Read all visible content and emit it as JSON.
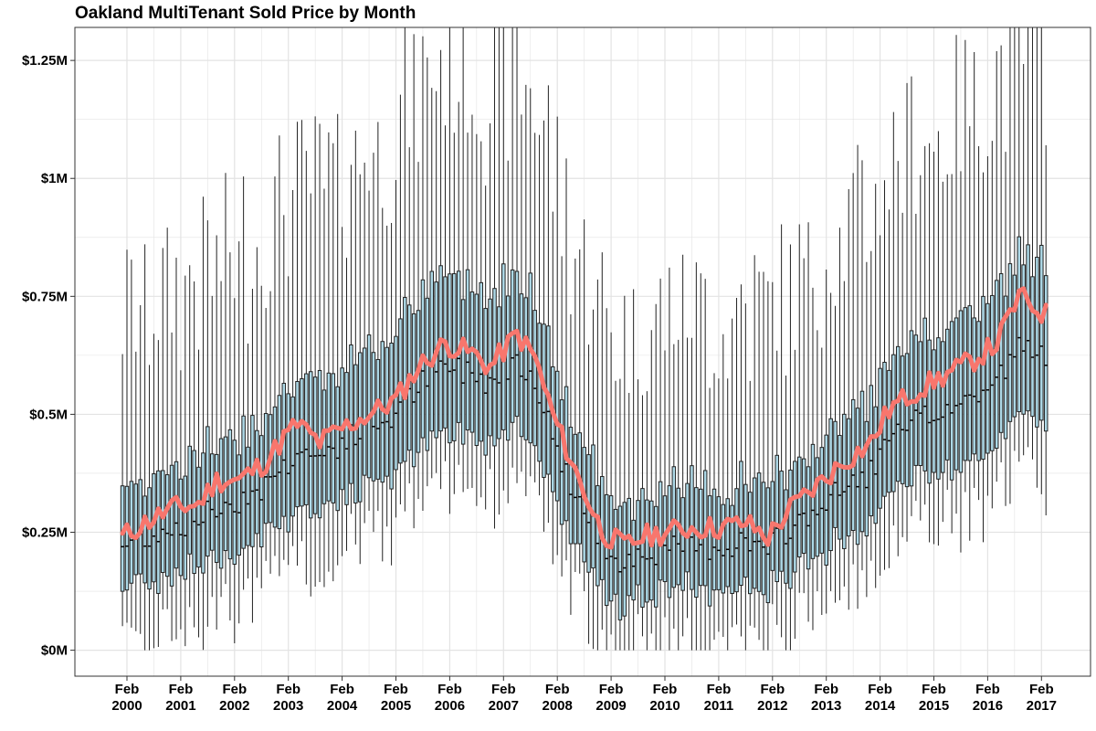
{
  "chart_data": {
    "type": "boxplot",
    "title": "Oakland MultiTenant Sold Price by Month",
    "xlabel": "",
    "ylabel": "",
    "ylim": [
      -0.055,
      1.32
    ],
    "yticks": [
      {
        "value": 0,
        "label": "$0M"
      },
      {
        "value": 0.25,
        "label": "$0.25M"
      },
      {
        "value": 0.5,
        "label": "$0.5M"
      },
      {
        "value": 0.75,
        "label": "$0.75M"
      },
      {
        "value": 1.0,
        "label": "$1M"
      },
      {
        "value": 1.25,
        "label": "$1.25M"
      }
    ],
    "xticks": [
      {
        "value": "2000-02",
        "label_top": "Feb",
        "label_bottom": "2000"
      },
      {
        "value": "2001-02",
        "label_top": "Feb",
        "label_bottom": "2001"
      },
      {
        "value": "2002-02",
        "label_top": "Feb",
        "label_bottom": "2002"
      },
      {
        "value": "2003-02",
        "label_top": "Feb",
        "label_bottom": "2003"
      },
      {
        "value": "2004-02",
        "label_top": "Feb",
        "label_bottom": "2004"
      },
      {
        "value": "2005-02",
        "label_top": "Feb",
        "label_bottom": "2005"
      },
      {
        "value": "2006-02",
        "label_top": "Feb",
        "label_bottom": "2006"
      },
      {
        "value": "2007-02",
        "label_top": "Feb",
        "label_bottom": "2007"
      },
      {
        "value": "2008-02",
        "label_top": "Feb",
        "label_bottom": "2008"
      },
      {
        "value": "2009-02",
        "label_top": "Feb",
        "label_bottom": "2009"
      },
      {
        "value": "2010-02",
        "label_top": "Feb",
        "label_bottom": "2010"
      },
      {
        "value": "2011-02",
        "label_top": "Feb",
        "label_bottom": "2011"
      },
      {
        "value": "2012-02",
        "label_top": "Feb",
        "label_bottom": "2012"
      },
      {
        "value": "2013-02",
        "label_top": "Feb",
        "label_bottom": "2013"
      },
      {
        "value": "2014-02",
        "label_top": "Feb",
        "label_bottom": "2014"
      },
      {
        "value": "2015-02",
        "label_top": "Feb",
        "label_bottom": "2015"
      },
      {
        "value": "2016-02",
        "label_top": "Feb",
        "label_bottom": "2016"
      },
      {
        "value": "2017-02",
        "label_top": "Feb",
        "label_bottom": "2017"
      }
    ],
    "grid": true,
    "legend": "none",
    "colors": {
      "box_fill": "#add8e6",
      "box_stroke": "#222222",
      "mean_line": "#f8766d",
      "grid": "#e3e3e3",
      "panel_border": "#333333"
    },
    "series": [
      {
        "label": "Mean",
        "style": "line",
        "points": [
          [
            "2000-01",
            0.24
          ],
          [
            "2000-06",
            0.27
          ],
          [
            "2000-12",
            0.3
          ],
          [
            "2001-06",
            0.31
          ],
          [
            "2001-10",
            0.36
          ],
          [
            "2002-03",
            0.36
          ],
          [
            "2002-09",
            0.4
          ],
          [
            "2003-01",
            0.45
          ],
          [
            "2003-04",
            0.48
          ],
          [
            "2003-09",
            0.44
          ],
          [
            "2004-02",
            0.47
          ],
          [
            "2004-08",
            0.5
          ],
          [
            "2005-02",
            0.53
          ],
          [
            "2005-07",
            0.6
          ],
          [
            "2006-01",
            0.65
          ],
          [
            "2006-07",
            0.63
          ],
          [
            "2006-11",
            0.6
          ],
          [
            "2007-05",
            0.67
          ],
          [
            "2007-09",
            0.62
          ],
          [
            "2008-01",
            0.5
          ],
          [
            "2008-06",
            0.38
          ],
          [
            "2008-12",
            0.25
          ],
          [
            "2009-05",
            0.22
          ],
          [
            "2009-09",
            0.24
          ],
          [
            "2010-02",
            0.25
          ],
          [
            "2010-08",
            0.26
          ],
          [
            "2011-02",
            0.26
          ],
          [
            "2011-08",
            0.27
          ],
          [
            "2012-01",
            0.24
          ],
          [
            "2012-06",
            0.3
          ],
          [
            "2012-12",
            0.35
          ],
          [
            "2013-06",
            0.4
          ],
          [
            "2013-12",
            0.44
          ],
          [
            "2014-04",
            0.51
          ],
          [
            "2014-10",
            0.55
          ],
          [
            "2015-04",
            0.58
          ],
          [
            "2015-10",
            0.61
          ],
          [
            "2016-04",
            0.65
          ],
          [
            "2016-09",
            0.75
          ],
          [
            "2017-03",
            0.71
          ]
        ]
      },
      {
        "label": "Median (box center)",
        "style": "box",
        "points": [
          [
            "2000-01",
            0.22
          ],
          [
            "2000-06",
            0.24
          ],
          [
            "2000-12",
            0.26
          ],
          [
            "2001-06",
            0.28
          ],
          [
            "2001-10",
            0.3
          ],
          [
            "2002-03",
            0.32
          ],
          [
            "2002-09",
            0.35
          ],
          [
            "2003-01",
            0.39
          ],
          [
            "2003-04",
            0.42
          ],
          [
            "2003-09",
            0.41
          ],
          [
            "2004-02",
            0.44
          ],
          [
            "2004-08",
            0.47
          ],
          [
            "2005-02",
            0.5
          ],
          [
            "2005-07",
            0.56
          ],
          [
            "2006-01",
            0.6
          ],
          [
            "2006-07",
            0.59
          ],
          [
            "2006-11",
            0.57
          ],
          [
            "2007-05",
            0.62
          ],
          [
            "2007-09",
            0.58
          ],
          [
            "2008-01",
            0.45
          ],
          [
            "2008-06",
            0.33
          ],
          [
            "2008-12",
            0.22
          ],
          [
            "2009-05",
            0.19
          ],
          [
            "2009-09",
            0.21
          ],
          [
            "2010-02",
            0.21
          ],
          [
            "2010-08",
            0.22
          ],
          [
            "2011-02",
            0.22
          ],
          [
            "2011-08",
            0.23
          ],
          [
            "2012-01",
            0.21
          ],
          [
            "2012-06",
            0.26
          ],
          [
            "2012-12",
            0.3
          ],
          [
            "2013-06",
            0.34
          ],
          [
            "2013-12",
            0.38
          ],
          [
            "2014-04",
            0.44
          ],
          [
            "2014-10",
            0.48
          ],
          [
            "2015-04",
            0.51
          ],
          [
            "2015-10",
            0.53
          ],
          [
            "2016-04",
            0.57
          ],
          [
            "2016-09",
            0.64
          ],
          [
            "2017-03",
            0.62
          ]
        ]
      }
    ],
    "annotations": []
  }
}
